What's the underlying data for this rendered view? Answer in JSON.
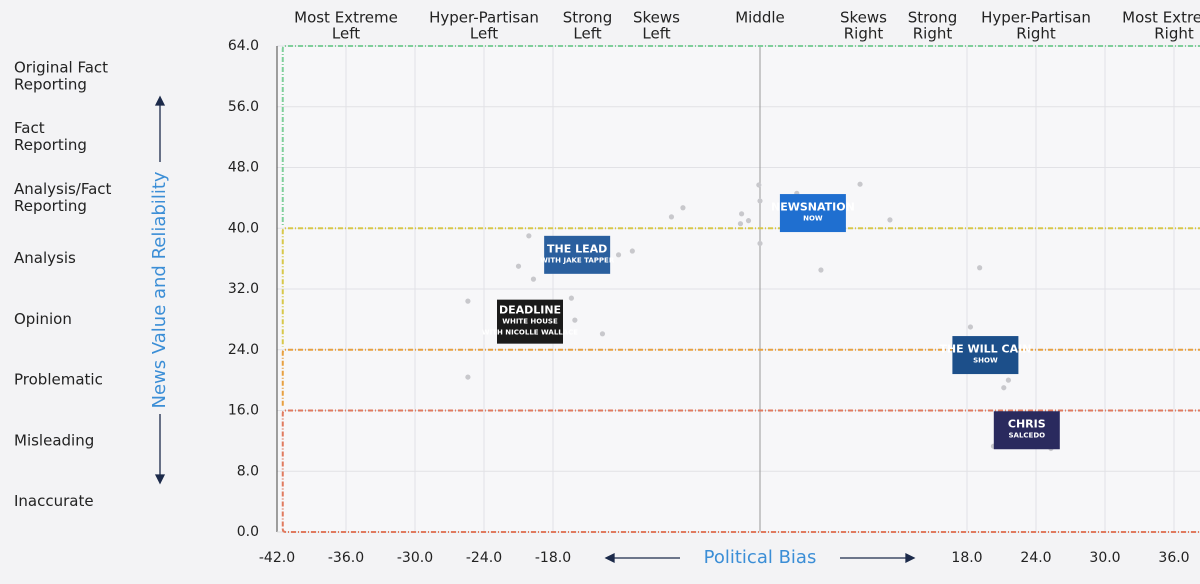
{
  "chart_data": {
    "type": "scatter",
    "x_label": "Political Bias",
    "y_label": "News Value and Reliability",
    "xlim": [
      -42,
      42
    ],
    "ylim": [
      0,
      64
    ],
    "xticks": [
      {
        "value": -42,
        "label": "-42.0"
      },
      {
        "value": -36,
        "label": "-36.0"
      },
      {
        "value": -30,
        "label": "-30.0"
      },
      {
        "value": -24,
        "label": "-24.0"
      },
      {
        "value": -18,
        "label": "-18.0"
      },
      {
        "value": 18,
        "label": "18.0"
      },
      {
        "value": 24,
        "label": "24.0"
      },
      {
        "value": 30,
        "label": "30.0"
      },
      {
        "value": 36,
        "label": "36.0"
      }
    ],
    "yticks": [
      {
        "value": 0,
        "label": "0.0"
      },
      {
        "value": 8,
        "label": "8.0"
      },
      {
        "value": 16,
        "label": "16.0"
      },
      {
        "value": 24,
        "label": "24.0"
      },
      {
        "value": 32,
        "label": "32.0"
      },
      {
        "value": 40,
        "label": "40.0"
      },
      {
        "value": 48,
        "label": "48.0"
      },
      {
        "value": 56,
        "label": "56.0"
      },
      {
        "value": 64,
        "label": "64.0"
      }
    ],
    "grid": true,
    "bias_categories": [
      {
        "lines": [
          "Most Extreme",
          "Left"
        ],
        "x": -36
      },
      {
        "lines": [
          "Hyper-Partisan",
          "Left"
        ],
        "x": -24
      },
      {
        "lines": [
          "Strong",
          "Left"
        ],
        "x": -15
      },
      {
        "lines": [
          "Skews",
          "Left"
        ],
        "x": -9
      },
      {
        "lines": [
          "Middle"
        ],
        "x": 0
      },
      {
        "lines": [
          "Skews",
          "Right"
        ],
        "x": 9
      },
      {
        "lines": [
          "Strong",
          "Right"
        ],
        "x": 15
      },
      {
        "lines": [
          "Hyper-Partisan",
          "Right"
        ],
        "x": 24
      },
      {
        "lines": [
          "Most Extreme",
          "Right"
        ],
        "x": 36
      }
    ],
    "reliability_categories": [
      {
        "lines": [
          "Original Fact",
          "Reporting"
        ],
        "y": 60
      },
      {
        "lines": [
          "Fact",
          "Reporting"
        ],
        "y": 52
      },
      {
        "lines": [
          "Analysis/Fact",
          "Reporting"
        ],
        "y": 44
      },
      {
        "lines": [
          "Analysis"
        ],
        "y": 36
      },
      {
        "lines": [
          "Opinion"
        ],
        "y": 28
      },
      {
        "lines": [
          "Problematic"
        ],
        "y": 20
      },
      {
        "lines": [
          "Misleading"
        ],
        "y": 12
      },
      {
        "lines": [
          "Inaccurate"
        ],
        "y": 4
      }
    ],
    "regions": [
      {
        "top": 64,
        "bottom": 40,
        "color": "#7fcf9a"
      },
      {
        "top": 40,
        "bottom": 24,
        "color": "#d8c84a"
      },
      {
        "top": 24,
        "bottom": 16,
        "color": "#e8a040"
      },
      {
        "top": 16,
        "bottom": 0,
        "color": "#e07a5f"
      }
    ],
    "region_left": -41.5,
    "points": {
      "color": "#c8c8cc",
      "x": [
        -25.4,
        -25.4,
        -21,
        -20.1,
        -19.7,
        -16.4,
        -16.1,
        -13.7,
        -12.3,
        -11.1,
        -7.7,
        -6.7,
        -1.6,
        -1,
        -1.7,
        -0.1,
        0,
        0,
        3.2,
        8.7,
        11.3,
        5.3,
        19.1,
        18.3,
        21.6,
        21.2,
        20.3,
        25.3
      ],
      "y": [
        30.4,
        20.4,
        35,
        39,
        33.3,
        30.8,
        27.9,
        26.1,
        36.5,
        37,
        41.5,
        42.7,
        41.9,
        41,
        40.6,
        45.7,
        43.6,
        38,
        44.6,
        45.8,
        41.1,
        34.5,
        34.8,
        27,
        20,
        19,
        11.3,
        11
      ]
    },
    "shows": [
      {
        "lines": [
          "THE LEAD",
          "WITH JAKE TAPPER"
        ],
        "x": -15.9,
        "y": 36.5,
        "color": "#2a5f9e"
      },
      {
        "lines": [
          "DEADLINE",
          "WHITE HOUSE",
          "WITH NICOLLE WALLACE"
        ],
        "x": -20,
        "y": 27.7,
        "color": "#1a1a1a"
      },
      {
        "lines": [
          "NEWSNATION",
          "NOW"
        ],
        "x": 4.6,
        "y": 42,
        "color": "#1f6fd0"
      },
      {
        "lines": [
          "THE WILL CAIN",
          "SHOW"
        ],
        "x": 19.6,
        "y": 23.3,
        "color": "#1c4f8a"
      },
      {
        "lines": [
          "CHRIS",
          "SALCEDO"
        ],
        "x": 23.2,
        "y": 13.4,
        "color": "#2a2a5e"
      }
    ]
  }
}
